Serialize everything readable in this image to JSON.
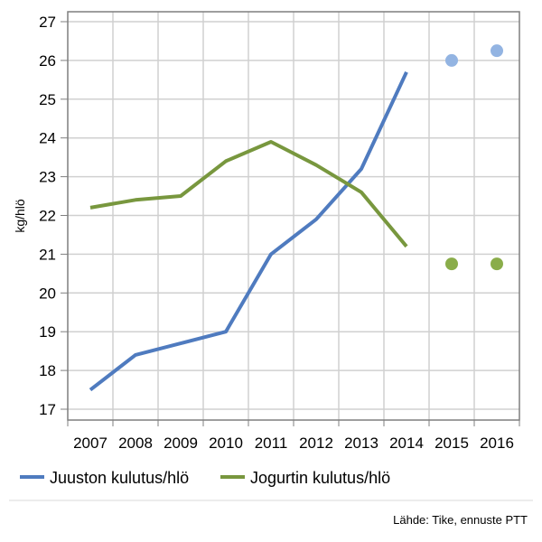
{
  "chart_data": {
    "type": "line",
    "categories": [
      "2007",
      "2008",
      "2009",
      "2010",
      "2011",
      "2012",
      "2013",
      "2014",
      "2015",
      "2016"
    ],
    "ylabel": "kg/hlö",
    "ylim": [
      17,
      27
    ],
    "yticks": [
      17,
      18,
      19,
      20,
      21,
      22,
      23,
      24,
      25,
      26,
      27
    ],
    "grid": true,
    "legend_position": "bottom-left",
    "series": [
      {
        "name": "Juuston kulutus/hlö",
        "color": "#4f7bbf",
        "values": [
          17.5,
          18.4,
          18.7,
          19.0,
          21.0,
          21.9,
          23.2,
          25.7,
          null,
          null
        ],
        "forecast": [
          null,
          null,
          null,
          null,
          null,
          null,
          null,
          null,
          26.0,
          26.25
        ],
        "forecast_color": "#93b4e2"
      },
      {
        "name": "Jogurtin kulutus/hlö",
        "color": "#78973e",
        "values": [
          22.2,
          22.4,
          22.5,
          23.4,
          23.9,
          23.3,
          22.6,
          21.2,
          null,
          null
        ],
        "forecast": [
          null,
          null,
          null,
          null,
          null,
          null,
          null,
          null,
          20.75,
          20.75
        ],
        "forecast_color": "#8aad4a"
      }
    ],
    "source": "Lähde: Tike, ennuste PTT"
  }
}
